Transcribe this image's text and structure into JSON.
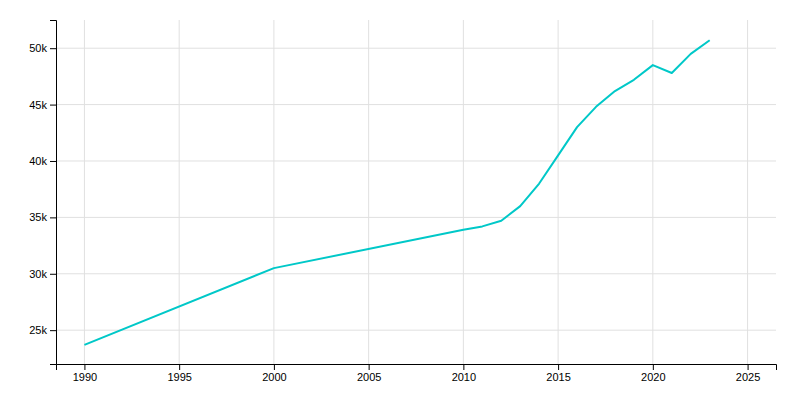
{
  "chart_data": {
    "type": "line",
    "x": [
      1990,
      2000,
      2010,
      2011,
      2012,
      2013,
      2014,
      2015,
      2016,
      2017,
      2018,
      2019,
      2020,
      2021,
      2022,
      2023
    ],
    "values": [
      23700,
      30500,
      33900,
      34200,
      34700,
      36000,
      38000,
      40500,
      43000,
      44800,
      46200,
      47200,
      48500,
      47800,
      49500,
      50700
    ],
    "color": "#00C8C8",
    "xlim": [
      1988.5,
      2026.5
    ],
    "ylim": [
      22000,
      52500
    ],
    "xticks": [
      1990,
      1995,
      2000,
      2005,
      2010,
      2015,
      2020,
      2025
    ],
    "yticks": [
      {
        "value": 25000,
        "label": "25k"
      },
      {
        "value": 30000,
        "label": "30k"
      },
      {
        "value": 35000,
        "label": "35k"
      },
      {
        "value": 40000,
        "label": "40k"
      },
      {
        "value": 45000,
        "label": "45k"
      },
      {
        "value": 50000,
        "label": "50k"
      }
    ],
    "grid": true
  }
}
